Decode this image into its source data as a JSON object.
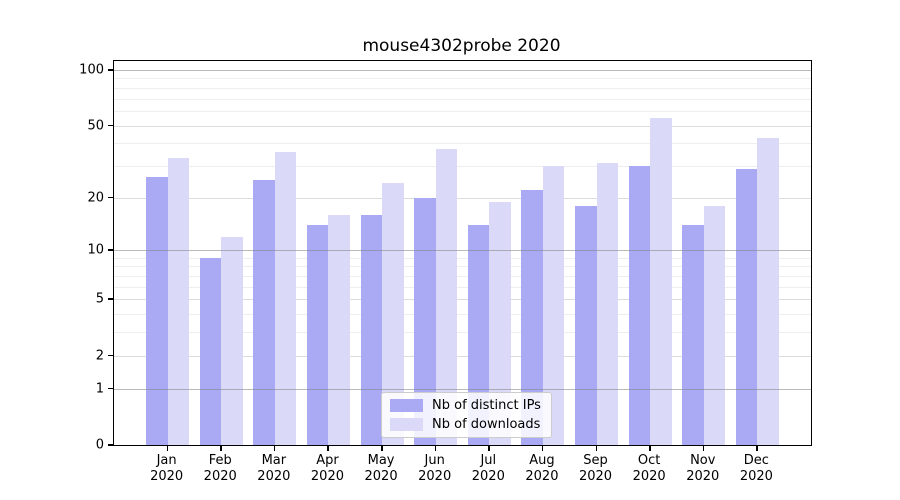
{
  "figure": {
    "title": "mouse4302probe 2020"
  },
  "legend": {
    "item_ips": "Nb of distinct IPs",
    "item_downloads": "Nb of downloads"
  },
  "colors": {
    "ips_bar": "#a9a9f4",
    "downloads_bar": "#dadaf8",
    "grid_minor": "#eeeeee",
    "grid_labeled": "#dcdcdc",
    "grid_power": "rgba(130,130,130,0.55)"
  },
  "chart_data": {
    "type": "bar",
    "title": "mouse4302probe 2020",
    "categories": [
      "Jan 2020",
      "Feb 2020",
      "Mar 2020",
      "Apr 2020",
      "May 2020",
      "Jun 2020",
      "Jul 2020",
      "Aug 2020",
      "Sep 2020",
      "Oct 2020",
      "Nov 2020",
      "Dec 2020"
    ],
    "series": [
      {
        "name": "Nb of distinct IPs",
        "color": "#a9a9f4",
        "values": [
          26,
          9,
          25,
          14,
          16,
          20,
          14,
          22,
          18,
          30,
          14,
          29
        ]
      },
      {
        "name": "Nb of downloads",
        "color": "#dadaf8",
        "values": [
          33,
          12,
          36,
          16,
          24,
          37,
          19,
          30,
          31,
          55,
          18,
          43
        ]
      }
    ],
    "xlabel": "",
    "ylabel": "",
    "y_scale": "log(value+1)",
    "y_ticks": [
      0,
      1,
      2,
      5,
      10,
      20,
      50,
      100
    ],
    "y_minor_ticks": [
      3,
      4,
      6,
      7,
      8,
      9,
      30,
      40,
      60,
      70,
      80,
      90
    ],
    "y_power_ticks": [
      1,
      10,
      100
    ],
    "ylim": [
      0,
      112
    ],
    "grid": "horizontal",
    "legend_position": "bottom-center-inside"
  }
}
